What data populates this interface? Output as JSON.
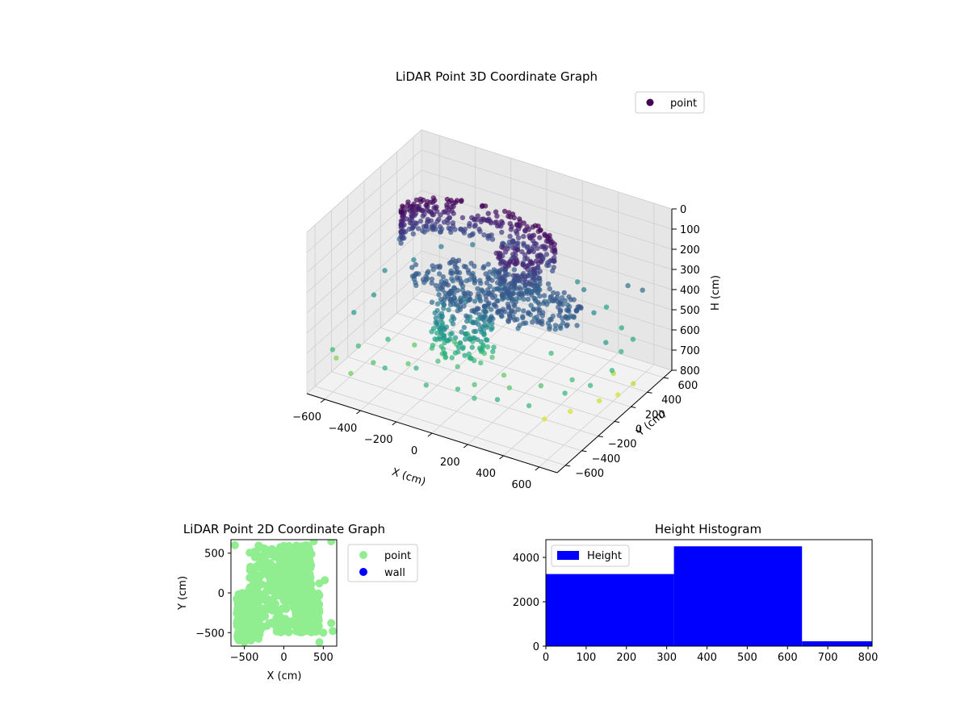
{
  "chart_data": [
    {
      "type": "scatter",
      "projection": "3d",
      "title": "LiDAR Point 3D Coordinate Graph",
      "xlabel": "X (cm)",
      "ylabel": "Y (cm)",
      "zlabel": "H (cm)",
      "xlim": [
        -700,
        700
      ],
      "ylim": [
        -700,
        700
      ],
      "zlim": [
        0,
        800
      ],
      "z_axis_inverted": true,
      "xticks": [
        "−600",
        "−400",
        "−200",
        "0",
        "200",
        "400",
        "600"
      ],
      "yticks": [
        "−600",
        "−400",
        "−200",
        "0",
        "200",
        "400",
        "600"
      ],
      "zticks": [
        "0",
        "100",
        "200",
        "300",
        "400",
        "500",
        "600",
        "700",
        "800"
      ],
      "grid": true,
      "legend": {
        "placement": "top-right",
        "entries": [
          "point"
        ]
      },
      "series": [
        {
          "name": "point",
          "colormap": "viridis",
          "color_by": "height",
          "legend_color": "#440154",
          "clusters": [
            {
              "shape": "arc-band",
              "x_center": -150,
              "y_center": 200,
              "radius": 420,
              "h_min": 150,
              "h_max": 320
            },
            {
              "shape": "disc",
              "x_center": 50,
              "y_center": 0,
              "radius": 480,
              "h_min": 330,
              "h_max": 380
            },
            {
              "shape": "column",
              "x_center": -80,
              "y_center": -150,
              "radius": 160,
              "h_min": 380,
              "h_max": 640
            },
            {
              "shape": "column",
              "x_center": 80,
              "y_center": 180,
              "radius": 120,
              "h_min": 200,
              "h_max": 400
            }
          ],
          "scatter_points": [
            [
              -620,
              -560,
              610
            ],
            [
              -540,
              -420,
              620
            ],
            [
              -430,
              -300,
              600
            ],
            [
              -300,
              -620,
              590
            ],
            [
              -180,
              -500,
              600
            ],
            [
              -60,
              -640,
              600
            ],
            [
              80,
              -560,
              610
            ],
            [
              200,
              -620,
              600
            ],
            [
              320,
              -600,
              580
            ],
            [
              460,
              -520,
              600
            ],
            [
              560,
              -300,
              590
            ],
            [
              620,
              -120,
              600
            ],
            [
              640,
              100,
              600
            ],
            [
              600,
              300,
              590
            ],
            [
              520,
              480,
              560
            ],
            [
              380,
              600,
              540
            ],
            [
              200,
              640,
              480
            ],
            [
              -620,
              -300,
              520
            ],
            [
              -600,
              -100,
              500
            ],
            [
              -640,
              120,
              470
            ],
            [
              -560,
              300,
              460
            ],
            [
              -480,
              460,
              430
            ],
            [
              -350,
              560,
              420
            ],
            [
              -200,
              620,
              400
            ],
            [
              -420,
              -500,
              640
            ],
            [
              -280,
              -380,
              650
            ],
            [
              -150,
              -300,
              630
            ],
            [
              100,
              -400,
              640
            ],
            [
              250,
              -300,
              650
            ],
            [
              380,
              -200,
              640
            ],
            [
              500,
              -80,
              620
            ],
            [
              560,
              200,
              520
            ],
            [
              420,
              360,
              470
            ],
            [
              300,
              500,
              440
            ],
            [
              600,
              560,
              380
            ],
            [
              -650,
              -450,
              700
            ],
            [
              -500,
              -600,
              680
            ],
            [
              -350,
              -150,
              660
            ],
            [
              150,
              -150,
              670
            ],
            [
              300,
              100,
              610
            ],
            [
              620,
              400,
              560
            ],
            [
              500,
              600,
              400
            ],
            [
              -600,
              500,
              300
            ],
            [
              -640,
              300,
              380
            ],
            [
              0,
              -300,
              560
            ]
          ],
          "highlight_points": [
            [
              400,
              -200,
              800
            ],
            [
              480,
              -60,
              790
            ],
            [
              560,
              120,
              780
            ],
            [
              600,
              260,
              790
            ],
            [
              640,
              360,
              760
            ],
            [
              520,
              380,
              750
            ]
          ]
        }
      ]
    },
    {
      "type": "scatter",
      "title": "LiDAR Point 2D Coordinate Graph",
      "xlabel": "X (cm)",
      "ylabel": "Y (cm)",
      "xlim": [
        -670,
        670
      ],
      "ylim": [
        -670,
        670
      ],
      "xticks": [
        "−500",
        "0",
        "500"
      ],
      "yticks": [
        "500",
        "0",
        "−500"
      ],
      "legend": {
        "placement": "outside-right",
        "entries": [
          {
            "name": "point",
            "color": "#90ee90"
          },
          {
            "name": "wall",
            "color": "#0000ff"
          }
        ]
      },
      "series": [
        {
          "name": "point",
          "color": "#90ee90",
          "clusters": [
            {
              "x_center": -100,
              "y_center": 50,
              "x_spread": 350,
              "y_spread": 550
            },
            {
              "x_center": 150,
              "y_center": 300,
              "x_spread": 200,
              "y_spread": 300
            },
            {
              "x_center": -450,
              "y_center": -300,
              "x_spread": 150,
              "y_spread": 300
            },
            {
              "x_center": 300,
              "y_center": -250,
              "x_spread": 150,
              "y_spread": 250
            }
          ],
          "scatter_points": [
            [
              450,
              120
            ],
            [
              520,
              160
            ],
            [
              600,
              650
            ],
            [
              380,
              650
            ],
            [
              450,
              -620
            ],
            [
              500,
              -500
            ],
            [
              600,
              -380
            ],
            [
              620,
              -480
            ],
            [
              -620,
              600
            ],
            [
              -500,
              -620
            ]
          ]
        },
        {
          "name": "wall",
          "color": "#0000ff",
          "points": []
        }
      ]
    },
    {
      "type": "bar",
      "title": "Height Histogram",
      "xlabel": "",
      "ylabel": "",
      "xlim": [
        0,
        810
      ],
      "ylim": [
        0,
        4800
      ],
      "xticks": [
        "0",
        "100",
        "200",
        "300",
        "400",
        "500",
        "600",
        "700",
        "800"
      ],
      "yticks": [
        "0",
        "2000",
        "4000"
      ],
      "legend": {
        "placement": "top-left",
        "entries": [
          "Height"
        ]
      },
      "series": [
        {
          "name": "Height",
          "color": "#0000ff",
          "bins": [
            0,
            318,
            636,
            954
          ],
          "values": [
            3250,
            4500,
            220
          ]
        }
      ]
    }
  ]
}
